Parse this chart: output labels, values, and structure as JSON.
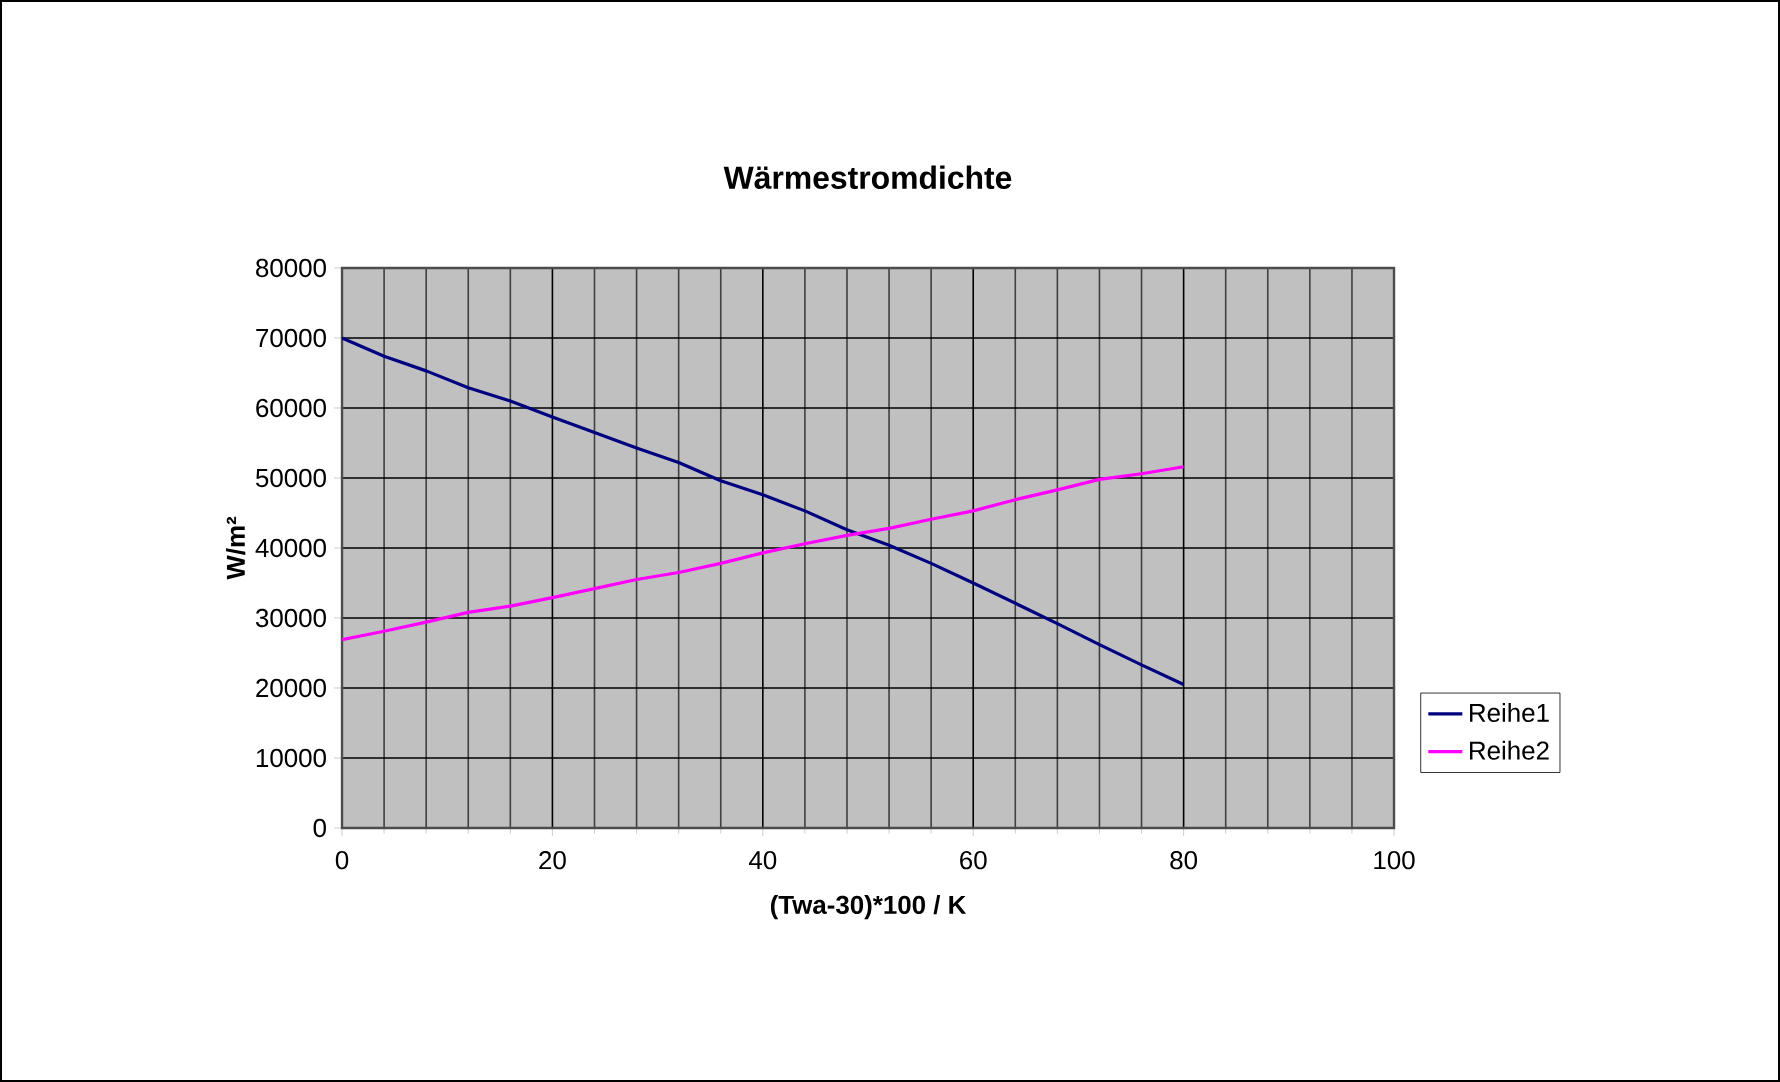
{
  "chart_data": {
    "type": "line",
    "title": "Wärmestromdichte",
    "xlabel": "(Twa-30)*100 / K",
    "ylabel": "W/m²",
    "xlim": [
      0,
      100
    ],
    "xticks": [
      0,
      20,
      40,
      60,
      80,
      100
    ],
    "ylim": [
      0,
      80000
    ],
    "yticks": [
      0,
      10000,
      20000,
      30000,
      40000,
      50000,
      60000,
      70000,
      80000
    ],
    "grid": true,
    "legend": "right",
    "marker": "none",
    "line_style": "solid",
    "series": [
      {
        "name": "Reihe1",
        "color": "#000080",
        "x": [
          0,
          4,
          8,
          12,
          16,
          20,
          24,
          28,
          32,
          36,
          40,
          44,
          48,
          52,
          56,
          60,
          64,
          68,
          72,
          76,
          80
        ],
        "values": [
          70000,
          67400,
          65300,
          62900,
          61000,
          58700,
          56500,
          54300,
          52200,
          49600,
          47600,
          45300,
          42600,
          40400,
          37800,
          35000,
          32100,
          29200,
          26200,
          23300,
          20500
        ]
      },
      {
        "name": "Reihe2",
        "color": "#ff00ff",
        "x": [
          0,
          4,
          8,
          12,
          16,
          20,
          24,
          28,
          32,
          36,
          40,
          44,
          48,
          52,
          56,
          60,
          64,
          68,
          72,
          76,
          80
        ],
        "values": [
          26900,
          28100,
          29400,
          30800,
          31700,
          32900,
          34200,
          35500,
          36500,
          37800,
          39300,
          40600,
          41800,
          42800,
          44100,
          45300,
          46900,
          48300,
          49800,
          50600,
          51600
        ]
      }
    ]
  }
}
